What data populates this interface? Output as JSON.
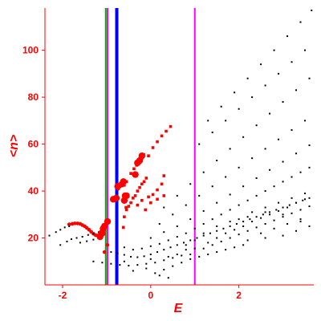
{
  "chart_data": {
    "type": "scatter",
    "xlabel": "E",
    "ylabel": "<n>",
    "xlim": [
      -2.4,
      3.7
    ],
    "ylim": [
      0,
      118
    ],
    "x_ticks": [
      {
        "value": -2,
        "label": "-2"
      },
      {
        "value": 0,
        "label": "0"
      },
      {
        "value": 2,
        "label": "2"
      }
    ],
    "y_ticks": [
      {
        "value": 20,
        "label": "20"
      },
      {
        "value": 40,
        "label": "40"
      },
      {
        "value": 60,
        "label": "60"
      },
      {
        "value": 80,
        "label": "80"
      },
      {
        "value": 100,
        "label": "100"
      }
    ],
    "vertical_lines": [
      {
        "x": -1.02,
        "color": "#00aa00"
      },
      {
        "x": -0.98,
        "color": "#ff00ff"
      },
      {
        "x": -0.77,
        "color": "#0000ff"
      },
      {
        "x": 1.0,
        "color": "#ff00ff"
      }
    ],
    "series": [
      {
        "color": "#ff0000",
        "points": [
          [
            -1.85,
            25.8
          ],
          [
            -1.78,
            26
          ],
          [
            -1.72,
            26.2
          ],
          [
            -1.66,
            26.2
          ],
          [
            -1.6,
            26
          ],
          [
            -1.55,
            25.5
          ],
          [
            -1.5,
            25
          ],
          [
            -1.45,
            24.3
          ],
          [
            -1.4,
            23.5
          ],
          [
            -1.35,
            22.6
          ],
          [
            -1.3,
            21.8
          ],
          [
            -1.25,
            21.2
          ],
          [
            -1.2,
            21
          ],
          [
            -1.15,
            21.6
          ],
          [
            -1.1,
            22.5
          ],
          [
            -1.05,
            24.5
          ],
          [
            -1.0,
            26.5
          ],
          [
            -0.96,
            27
          ],
          [
            -1.05,
            14
          ],
          [
            -0.98,
            17
          ],
          [
            -0.82,
            36.5
          ],
          [
            -0.78,
            37.5
          ],
          [
            -0.74,
            41
          ],
          [
            -0.7,
            42
          ],
          [
            -0.62,
            43
          ],
          [
            -0.58,
            37.5
          ],
          [
            -0.56,
            33
          ],
          [
            -0.6,
            42.5
          ],
          [
            -0.55,
            44
          ],
          [
            -0.45,
            47.5
          ],
          [
            -0.38,
            49.5
          ],
          [
            -0.32,
            51
          ],
          [
            -0.26,
            53
          ],
          [
            -0.2,
            54
          ],
          [
            -0.16,
            55.5
          ],
          [
            -0.62,
            24.5
          ],
          [
            -0.6,
            29
          ],
          [
            -0.55,
            32
          ],
          [
            -0.5,
            33.5
          ],
          [
            -0.45,
            35
          ],
          [
            -0.4,
            37
          ],
          [
            -0.35,
            38
          ],
          [
            -0.3,
            40
          ],
          [
            -0.25,
            41.5
          ],
          [
            -0.2,
            43
          ],
          [
            -0.15,
            44
          ],
          [
            -0.1,
            45.5
          ],
          [
            -0.05,
            55
          ],
          [
            0.05,
            58.5
          ],
          [
            0.15,
            61
          ],
          [
            0.25,
            63.5
          ],
          [
            0.35,
            65.5
          ],
          [
            0.45,
            67.5
          ],
          [
            -0.3,
            34
          ],
          [
            -0.2,
            36
          ],
          [
            -0.05,
            37.5
          ],
          [
            0.05,
            38.5
          ],
          [
            0.15,
            40.5
          ],
          [
            0.25,
            43
          ],
          [
            0.3,
            46.5
          ],
          [
            -0.12,
            32
          ],
          [
            0.0,
            35
          ],
          [
            0.15,
            36.5
          ],
          [
            0.3,
            38
          ]
        ]
      },
      {
        "color": "#000000",
        "points": [
          [
            -2.3,
            21
          ],
          [
            -2.15,
            22.5
          ],
          [
            -2.05,
            23.5
          ],
          [
            -1.95,
            24.5
          ],
          [
            -1.85,
            25
          ],
          [
            -2.05,
            17
          ],
          [
            -1.9,
            18.5
          ],
          [
            -1.8,
            19.5
          ],
          [
            -1.68,
            20
          ],
          [
            -1.55,
            20.5
          ],
          [
            -1.42,
            21.3
          ],
          [
            -1.3,
            21.8
          ],
          [
            -1.18,
            22.5
          ],
          [
            -1.6,
            18
          ],
          [
            -1.45,
            18.6
          ],
          [
            -1.3,
            19.3
          ],
          [
            -1.15,
            19.6
          ],
          [
            -0.9,
            14
          ],
          [
            -0.75,
            13.5
          ],
          [
            -0.6,
            12.8
          ],
          [
            -0.45,
            12
          ],
          [
            -0.3,
            11.8
          ],
          [
            -0.15,
            12.2
          ],
          [
            0.0,
            13
          ],
          [
            0.15,
            14
          ],
          [
            0.3,
            15
          ],
          [
            0.45,
            16
          ],
          [
            0.6,
            17
          ],
          [
            0.75,
            18
          ],
          [
            0.9,
            19
          ],
          [
            1.05,
            20
          ],
          [
            1.2,
            21
          ],
          [
            1.35,
            22
          ],
          [
            1.5,
            23
          ],
          [
            1.65,
            24
          ],
          [
            1.8,
            25
          ],
          [
            1.95,
            26
          ],
          [
            2.1,
            27
          ],
          [
            2.25,
            28
          ],
          [
            2.4,
            29
          ],
          [
            2.55,
            30
          ],
          [
            2.7,
            31
          ],
          [
            2.85,
            32
          ],
          [
            3.0,
            33
          ],
          [
            3.15,
            34
          ],
          [
            3.3,
            35
          ],
          [
            3.45,
            36
          ],
          [
            3.6,
            37
          ],
          [
            -0.6,
            16
          ],
          [
            -0.4,
            15
          ],
          [
            -0.2,
            15.5
          ],
          [
            0.0,
            16.5
          ],
          [
            0.2,
            17.5
          ],
          [
            0.4,
            19
          ],
          [
            0.6,
            20.5
          ],
          [
            0.8,
            22
          ],
          [
            1.0,
            24
          ],
          [
            1.2,
            26
          ],
          [
            1.4,
            28
          ],
          [
            1.6,
            30
          ],
          [
            1.8,
            32
          ],
          [
            2.0,
            34
          ],
          [
            2.2,
            36
          ],
          [
            2.4,
            38
          ],
          [
            2.6,
            40
          ],
          [
            2.8,
            42
          ],
          [
            3.0,
            44
          ],
          [
            3.2,
            46
          ],
          [
            3.4,
            48
          ],
          [
            3.6,
            50
          ],
          [
            0.0,
            20
          ],
          [
            0.3,
            22.5
          ],
          [
            0.6,
            25
          ],
          [
            0.9,
            28
          ],
          [
            1.2,
            31.5
          ],
          [
            1.5,
            35
          ],
          [
            1.8,
            38.5
          ],
          [
            2.1,
            42
          ],
          [
            2.4,
            45.5
          ],
          [
            2.7,
            49
          ],
          [
            3.0,
            52.5
          ],
          [
            3.3,
            56
          ],
          [
            3.6,
            59.5
          ],
          [
            0.2,
            26
          ],
          [
            0.5,
            30
          ],
          [
            0.8,
            34
          ],
          [
            1.1,
            38
          ],
          [
            1.4,
            42
          ],
          [
            1.7,
            46
          ],
          [
            2.0,
            50
          ],
          [
            2.3,
            54
          ],
          [
            2.6,
            58
          ],
          [
            2.9,
            62
          ],
          [
            3.2,
            66
          ],
          [
            3.5,
            70
          ],
          [
            0.3,
            33
          ],
          [
            0.6,
            38
          ],
          [
            0.9,
            43
          ],
          [
            1.2,
            48
          ],
          [
            1.5,
            53
          ],
          [
            1.8,
            58
          ],
          [
            2.1,
            63
          ],
          [
            2.4,
            68
          ],
          [
            2.7,
            73
          ],
          [
            3.0,
            78
          ],
          [
            3.3,
            83
          ],
          [
            3.6,
            88
          ],
          [
            1.1,
            60
          ],
          [
            1.4,
            65
          ],
          [
            1.7,
            70
          ],
          [
            2.0,
            75
          ],
          [
            2.3,
            80
          ],
          [
            2.6,
            85
          ],
          [
            2.9,
            90
          ],
          [
            3.2,
            95
          ],
          [
            3.5,
            100
          ],
          [
            1.3,
            70
          ],
          [
            1.6,
            76
          ],
          [
            1.9,
            82
          ],
          [
            2.2,
            88
          ],
          [
            2.5,
            94
          ],
          [
            2.8,
            100
          ],
          [
            3.1,
            106
          ],
          [
            3.4,
            112
          ],
          [
            3.65,
            117
          ],
          [
            -1.3,
            10
          ],
          [
            -1.1,
            9.5
          ],
          [
            -0.9,
            9
          ],
          [
            -0.7,
            8.5
          ],
          [
            -0.5,
            8.2
          ],
          [
            -0.3,
            8.5
          ],
          [
            -0.1,
            9
          ],
          [
            0.1,
            9.5
          ],
          [
            0.3,
            10.5
          ],
          [
            0.5,
            11.5
          ],
          [
            0.7,
            12.5
          ],
          [
            0.9,
            13
          ],
          [
            0.1,
            5
          ],
          [
            0.3,
            6.5
          ],
          [
            0.5,
            8
          ],
          [
            0.7,
            9.5
          ],
          [
            0.9,
            11
          ],
          [
            1.1,
            12
          ],
          [
            1.3,
            13
          ],
          [
            1.5,
            14
          ],
          [
            1.7,
            15
          ],
          [
            1.9,
            16
          ],
          [
            2.1,
            17
          ],
          [
            1.2,
            15.5
          ],
          [
            1.4,
            17
          ],
          [
            1.6,
            18.5
          ],
          [
            1.8,
            20
          ],
          [
            2.0,
            21.5
          ],
          [
            2.2,
            23
          ],
          [
            2.4,
            24.5
          ],
          [
            2.6,
            26
          ],
          [
            2.8,
            27.5
          ],
          [
            3.0,
            29
          ],
          [
            3.2,
            30.5
          ],
          [
            3.4,
            32
          ],
          [
            3.6,
            33.5
          ],
          [
            0.6,
            13
          ],
          [
            0.8,
            15
          ],
          [
            1.0,
            15.5
          ],
          [
            1.3,
            18
          ],
          [
            1.5,
            20
          ],
          [
            1.7,
            22
          ],
          [
            1.9,
            23.5
          ],
          [
            2.1,
            25
          ],
          [
            2.3,
            27
          ],
          [
            2.5,
            28.5
          ],
          [
            2.7,
            30
          ],
          [
            2.9,
            31.5
          ],
          [
            3.1,
            33
          ],
          [
            3.3,
            35
          ],
          [
            3.5,
            36.5
          ],
          [
            2.0,
            28
          ],
          [
            2.3,
            31
          ],
          [
            2.6,
            33
          ],
          [
            2.9,
            35
          ],
          [
            3.2,
            37
          ],
          [
            3.5,
            39
          ],
          [
            -0.4,
            6
          ],
          [
            -0.1,
            7
          ],
          [
            0.2,
            4
          ],
          [
            0.4,
            3
          ],
          [
            -0.6,
            10
          ],
          [
            0.0,
            11
          ],
          [
            0.4,
            12
          ],
          [
            0.8,
            17
          ],
          [
            1.0,
            19
          ],
          [
            1.2,
            22
          ],
          [
            1.5,
            25
          ],
          [
            1.8,
            27
          ],
          [
            2.2,
            29
          ],
          [
            2.6,
            31
          ],
          [
            3.0,
            30
          ],
          [
            3.4,
            27
          ],
          [
            2.5,
            22
          ],
          [
            2.8,
            24
          ],
          [
            3.1,
            26
          ],
          [
            3.4,
            28
          ],
          [
            3.6,
            25
          ],
          [
            2.2,
            19
          ],
          [
            2.6,
            20
          ],
          [
            3.0,
            21
          ],
          [
            3.3,
            23
          ]
        ]
      },
      {
        "color": "#ff0000",
        "points": [
          [
            -1.15,
            20.5
          ],
          [
            -1.1,
            22
          ],
          [
            -1.05,
            25
          ],
          [
            -0.98,
            27
          ],
          [
            -0.85,
            36.5
          ],
          [
            -0.75,
            42
          ],
          [
            -0.62,
            44
          ],
          [
            -0.55,
            38
          ],
          [
            -0.25,
            53
          ],
          [
            -0.2,
            55
          ],
          [
            -1.12,
            22
          ],
          [
            -1.08,
            24
          ],
          [
            -0.78,
            37
          ],
          [
            -0.65,
            43
          ],
          [
            -0.6,
            36
          ],
          [
            -0.58,
            38
          ],
          [
            -0.35,
            47
          ],
          [
            -0.3,
            52
          ]
        ]
      }
    ]
  }
}
